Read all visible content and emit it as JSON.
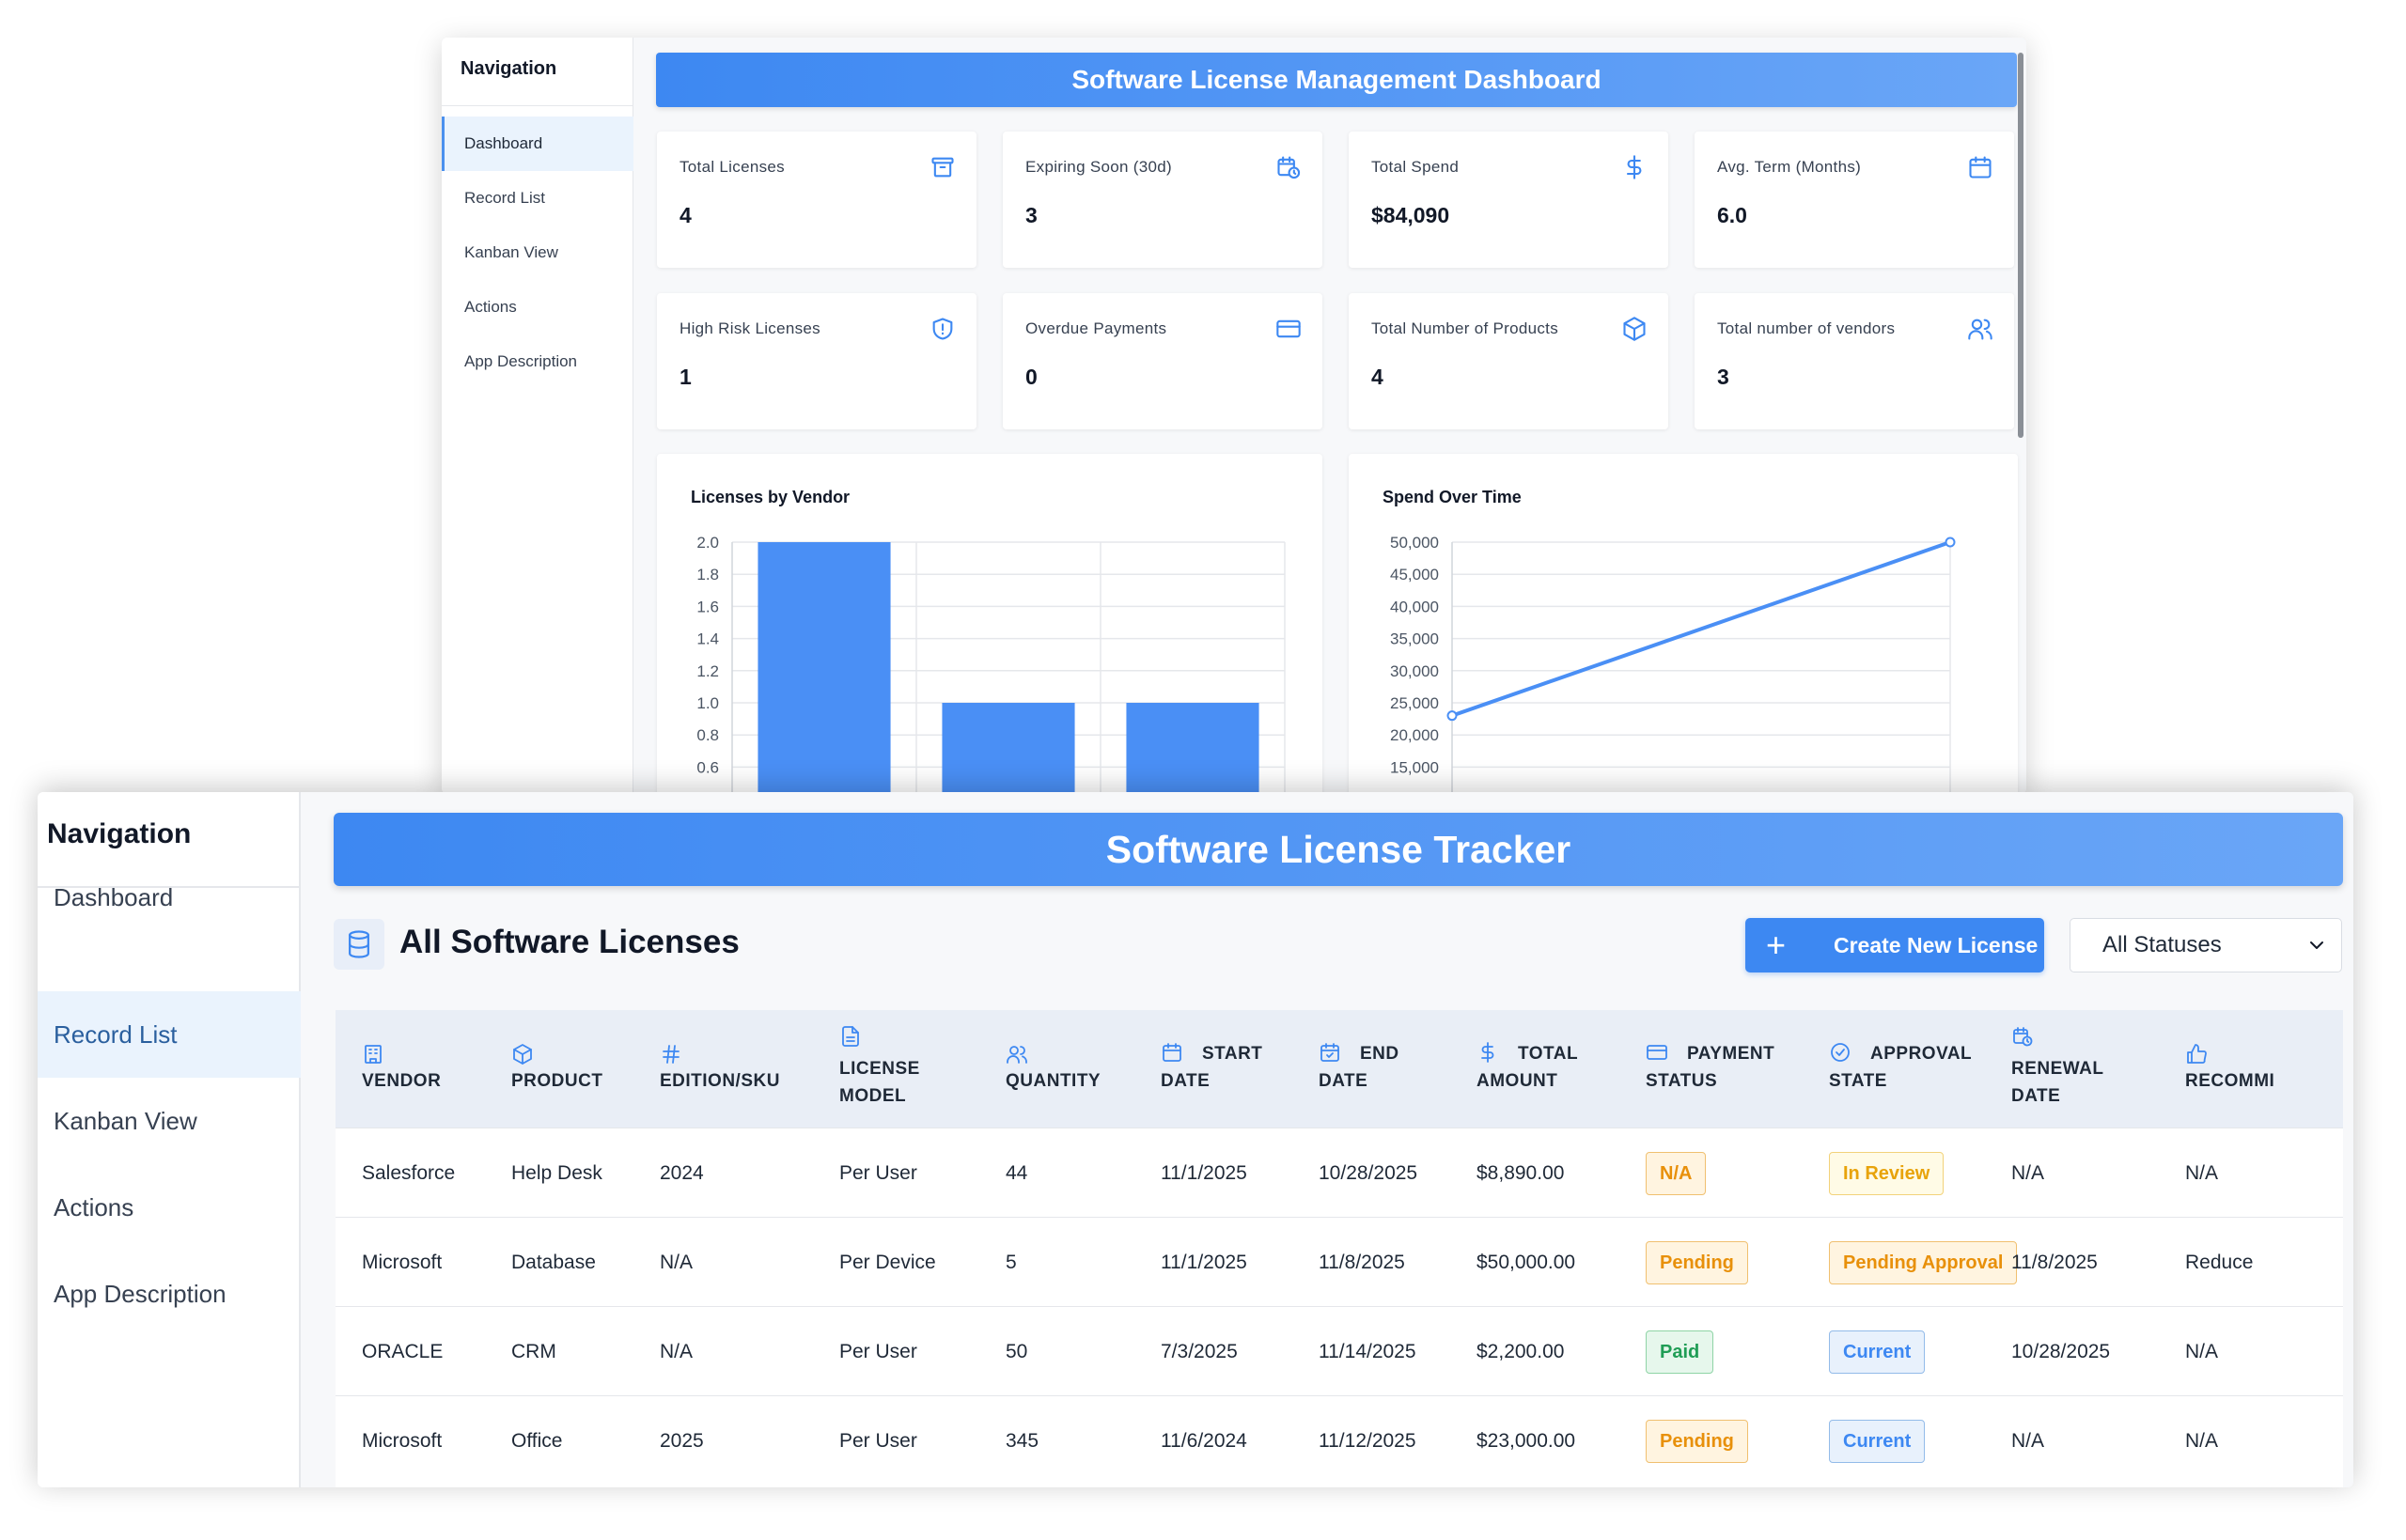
{
  "dashboard": {
    "nav": {
      "title": "Navigation",
      "items": [
        "Dashboard",
        "Record List",
        "Kanban View",
        "Actions",
        "App Description"
      ],
      "active": "Dashboard"
    },
    "banner": "Software License Management Dashboard",
    "cards": [
      {
        "label": "Total Licenses",
        "value": "4",
        "icon": "archive-icon"
      },
      {
        "label": "Expiring Soon (30d)",
        "value": "3",
        "icon": "calendar-clock-icon"
      },
      {
        "label": "Total Spend",
        "value": "$84,090",
        "icon": "dollar-icon"
      },
      {
        "label": "Avg. Term (Months)",
        "value": "6.0",
        "icon": "calendar-icon"
      },
      {
        "label": "High Risk Licenses",
        "value": "1",
        "icon": "shield-icon"
      },
      {
        "label": "Overdue Payments",
        "value": "0",
        "icon": "credit-card-icon"
      },
      {
        "label": "Total Number of Products",
        "value": "4",
        "icon": "cube-icon"
      },
      {
        "label": "Total number of vendors",
        "value": "3",
        "icon": "users-icon"
      }
    ]
  },
  "chart_data": [
    {
      "type": "bar",
      "title": "Licenses by Vendor",
      "categories": [
        "",
        "",
        ""
      ],
      "values": [
        2,
        1,
        1
      ],
      "ylim": [
        0,
        2.0
      ],
      "yticks": [
        "2.0",
        "1.8",
        "1.6",
        "1.4",
        "1.2",
        "1.0",
        "0.8",
        "0.6"
      ],
      "color": "#4a8ff5",
      "grid": true
    },
    {
      "type": "line",
      "title": "Spend Over Time",
      "x": [
        0,
        1
      ],
      "values": [
        23000,
        50000
      ],
      "ylim": [
        0,
        50000
      ],
      "yticks": [
        "50,000",
        "45,000",
        "40,000",
        "35,000",
        "30,000",
        "25,000",
        "20,000",
        "15,000"
      ],
      "color": "#4a8ff5",
      "grid": true
    }
  ],
  "tracker": {
    "nav": {
      "title": "Navigation",
      "items": [
        "Dashboard",
        "Record List",
        "Kanban View",
        "Actions",
        "App Description"
      ],
      "active": "Record List"
    },
    "banner": "Software License Tracker",
    "list_title": "All Software Licenses",
    "create_button": "Create New License",
    "status_filter": "All Statuses",
    "columns": [
      {
        "lines": [
          "VENDOR"
        ],
        "icon": "building-icon"
      },
      {
        "lines": [
          "PRODUCT"
        ],
        "icon": "cube-icon"
      },
      {
        "lines": [
          "EDITION/SKU"
        ],
        "icon": "hash-icon"
      },
      {
        "lines": [
          "LICENSE",
          "MODEL"
        ],
        "icon": "document-icon"
      },
      {
        "lines": [
          "QUANTITY"
        ],
        "icon": "users-icon"
      },
      {
        "lines": [
          "START",
          "DATE"
        ],
        "icon": "calendar-icon"
      },
      {
        "lines": [
          "END",
          "DATE"
        ],
        "icon": "calendar-check-icon"
      },
      {
        "lines": [
          "TOTAL",
          "AMOUNT"
        ],
        "icon": "dollar-icon"
      },
      {
        "lines": [
          "PAYMENT",
          "STATUS"
        ],
        "icon": "credit-card-icon"
      },
      {
        "lines": [
          "APPROVAL",
          "STATE"
        ],
        "icon": "check-circle-icon"
      },
      {
        "lines": [
          "RENEWAL",
          "DATE"
        ],
        "icon": "calendar-clock-icon"
      },
      {
        "lines": [
          "RECOMMI"
        ],
        "icon": "thumbs-up-icon"
      }
    ],
    "rows": [
      {
        "vendor": "Salesforce",
        "product": "Help Desk",
        "edition": "2024",
        "model": "Per User",
        "quantity": "44",
        "start": "11/1/2025",
        "end": "10/28/2025",
        "amount": "$8,890.00",
        "payment": "N/A",
        "payment_style": "orange",
        "approval": "In Review",
        "approval_style": "yellow",
        "renewal": "N/A",
        "recommendation": "N/A"
      },
      {
        "vendor": "Microsoft",
        "product": "Database",
        "edition": "N/A",
        "model": "Per Device",
        "quantity": "5",
        "start": "11/1/2025",
        "end": "11/8/2025",
        "amount": "$50,000.00",
        "payment": "Pending",
        "payment_style": "orange",
        "approval": "Pending Approval",
        "approval_style": "orange",
        "renewal": "11/8/2025",
        "recommendation": "Reduce"
      },
      {
        "vendor": "ORACLE",
        "product": "CRM",
        "edition": "N/A",
        "model": "Per User",
        "quantity": "50",
        "start": "7/3/2025",
        "end": "11/14/2025",
        "amount": "$2,200.00",
        "payment": "Paid",
        "payment_style": "green",
        "approval": "Current",
        "approval_style": "blue",
        "renewal": "10/28/2025",
        "recommendation": "N/A"
      },
      {
        "vendor": "Microsoft",
        "product": "Office",
        "edition": "2025",
        "model": "Per User",
        "quantity": "345",
        "start": "11/6/2024",
        "end": "11/12/2025",
        "amount": "$23,000.00",
        "payment": "Pending",
        "payment_style": "orange",
        "approval": "Current",
        "approval_style": "blue",
        "renewal": "N/A",
        "recommendation": "N/A"
      }
    ]
  }
}
